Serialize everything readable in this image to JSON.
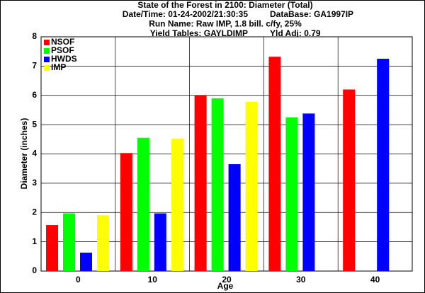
{
  "chart_data": {
    "type": "bar",
    "title": "State of the Forest in 2100: Diameter (Total)",
    "subtitle": [
      [
        "Date/Time: 01-24-2002/21:30:35",
        "DataBase: GA1997IP"
      ],
      [
        "Run Name: Raw IMP, 1.8 bill. c/fy, 25%"
      ],
      [
        "Yield Tables: GAYLDIMP",
        "Yld Adj: 0.79"
      ]
    ],
    "x_label": "Age",
    "y_label": "Diameter (inches)",
    "categories": [
      "0",
      "10",
      "20",
      "30",
      "40"
    ],
    "series": [
      {
        "name": "NSOF",
        "color": "#ff0000",
        "values": [
          1.57,
          4.03,
          6.0,
          7.32,
          6.2
        ]
      },
      {
        "name": "PSOF",
        "color": "#00ff00",
        "values": [
          1.97,
          4.55,
          5.9,
          5.25,
          null
        ]
      },
      {
        "name": "HWDS",
        "color": "#0000ff",
        "values": [
          0.63,
          1.97,
          3.65,
          5.38,
          7.25
        ]
      },
      {
        "name": "IMP",
        "color": "#ffff00",
        "values": [
          1.9,
          4.52,
          5.78,
          null,
          null
        ]
      }
    ],
    "ylim": [
      0,
      8
    ],
    "yticks": [
      0,
      1,
      2,
      3,
      4,
      5,
      6,
      7,
      8
    ],
    "grid": true,
    "legend": "top-left"
  }
}
